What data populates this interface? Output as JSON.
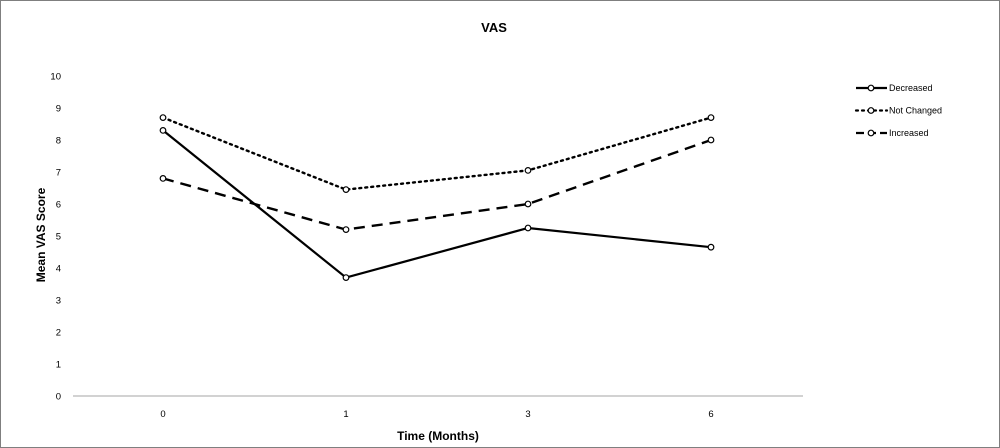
{
  "chart_data": {
    "type": "line",
    "title": "VAS",
    "xlabel": "Time (Months)",
    "ylabel": "Mean VAS Score",
    "categories": [
      "0",
      "1",
      "3",
      "6"
    ],
    "ylim": [
      0,
      10
    ],
    "yticks": [
      0,
      1,
      2,
      3,
      4,
      5,
      6,
      7,
      8,
      9,
      10
    ],
    "grid": false,
    "legend_position": "right",
    "series": [
      {
        "name": "Decreased",
        "values": [
          8.3,
          3.7,
          5.25,
          4.65
        ],
        "line_style": "solid",
        "color": "#000000"
      },
      {
        "name": "Not Changed",
        "values": [
          8.7,
          6.45,
          7.05,
          8.7
        ],
        "line_style": "dotted",
        "color": "#000000"
      },
      {
        "name": "Increased",
        "values": [
          6.8,
          5.2,
          6.0,
          8.0
        ],
        "line_style": "dashed",
        "color": "#000000"
      }
    ]
  }
}
